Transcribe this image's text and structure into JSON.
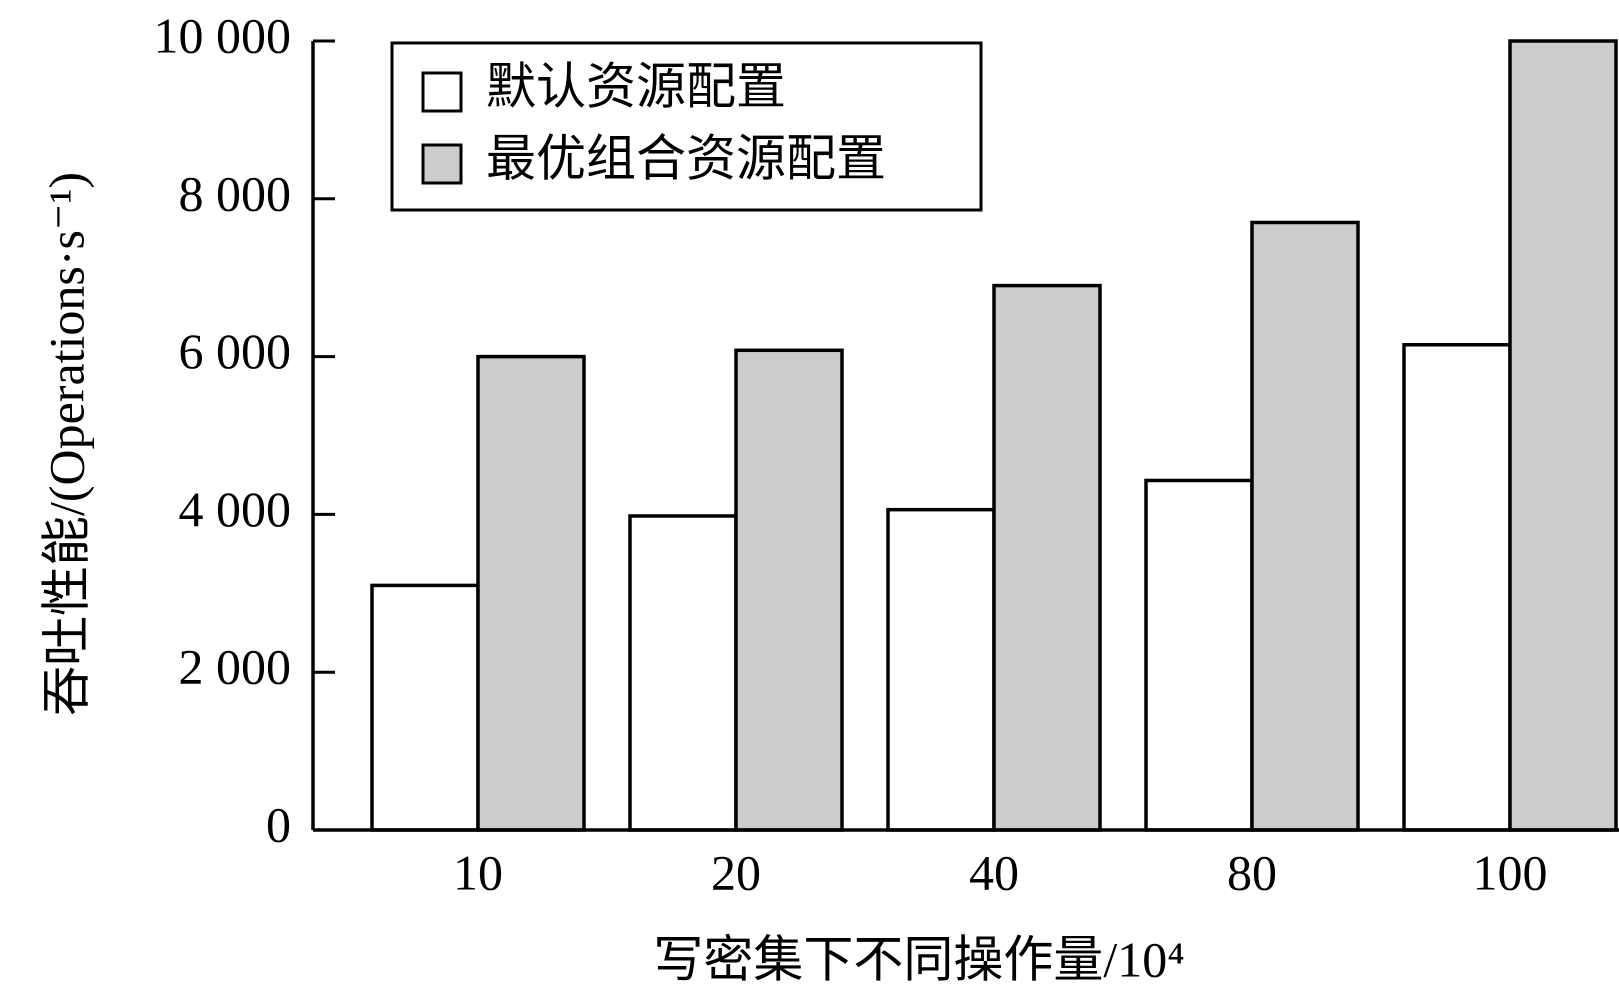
{
  "chart_data": {
    "type": "bar",
    "ylabel": "吞吐性能/(Operations·s⁻¹)",
    "xlabel": "写密集下不同操作量/10⁴",
    "categories": [
      "10",
      "20",
      "40",
      "80",
      "100"
    ],
    "series": [
      {
        "name": "默认资源配置",
        "color": "#ffffff",
        "values": [
          3100,
          3980,
          4060,
          4430,
          6150
        ]
      },
      {
        "name": "最优组合资源配置",
        "color": "#cccccc",
        "values": [
          6000,
          6080,
          6900,
          7700,
          10000
        ]
      }
    ],
    "ylim": [
      0,
      10000
    ],
    "yticks": [
      0,
      {
        "value": 2000,
        "label": "2 000"
      },
      {
        "value": 4000,
        "label": "4 000"
      },
      {
        "value": 6000,
        "label": "6 000"
      },
      {
        "value": 8000,
        "label": "8 000"
      },
      {
        "value": 10000,
        "label": "10 000"
      }
    ],
    "legend": "upper left"
  }
}
